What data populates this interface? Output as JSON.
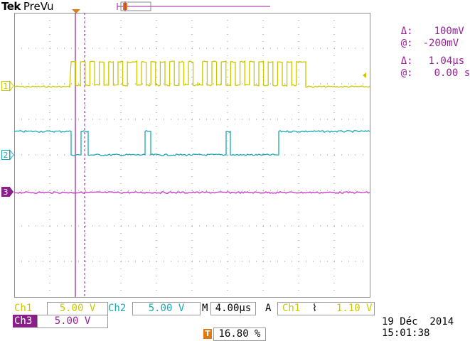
{
  "header": {
    "brand": "Tek",
    "mode": "PreVu"
  },
  "markers": {
    "trigger": "T",
    "ch1": "1",
    "ch2": "2",
    "ch3": "3"
  },
  "cursor_readouts": {
    "delta_v_symbol": "Δ:",
    "delta_v_value": "100mV",
    "at_v_symbol": "@:",
    "at_v_value": "-200mV",
    "delta_t_symbol": "Δ:",
    "delta_t_value": "1.04µs",
    "at_t_symbol": "@:",
    "at_t_value": "0.00 s"
  },
  "channels": {
    "ch1": {
      "name": "Ch1",
      "scale": "5.00 V",
      "color": "#c9c900"
    },
    "ch2": {
      "name": "Ch2",
      "scale": "5.00 V",
      "color": "#1aa7b5"
    },
    "ch3": {
      "name": "Ch3",
      "scale": "5.00 V",
      "color": "#c832c8"
    }
  },
  "timebase": {
    "prefix": "M",
    "value": "4.00µs"
  },
  "trigger": {
    "mode": "A",
    "source": "Ch1",
    "slope_glyph": "⌇",
    "level": "1.10 V"
  },
  "trigger_position": {
    "icon": "T",
    "value": "16.80 %"
  },
  "datetime": {
    "date": "19 Déc  2014",
    "time": "15:01:38"
  },
  "colors": {
    "grid": "#8c8c8c",
    "cursor": "#9a1f9a",
    "trigger_marker": "#e07a10"
  }
}
